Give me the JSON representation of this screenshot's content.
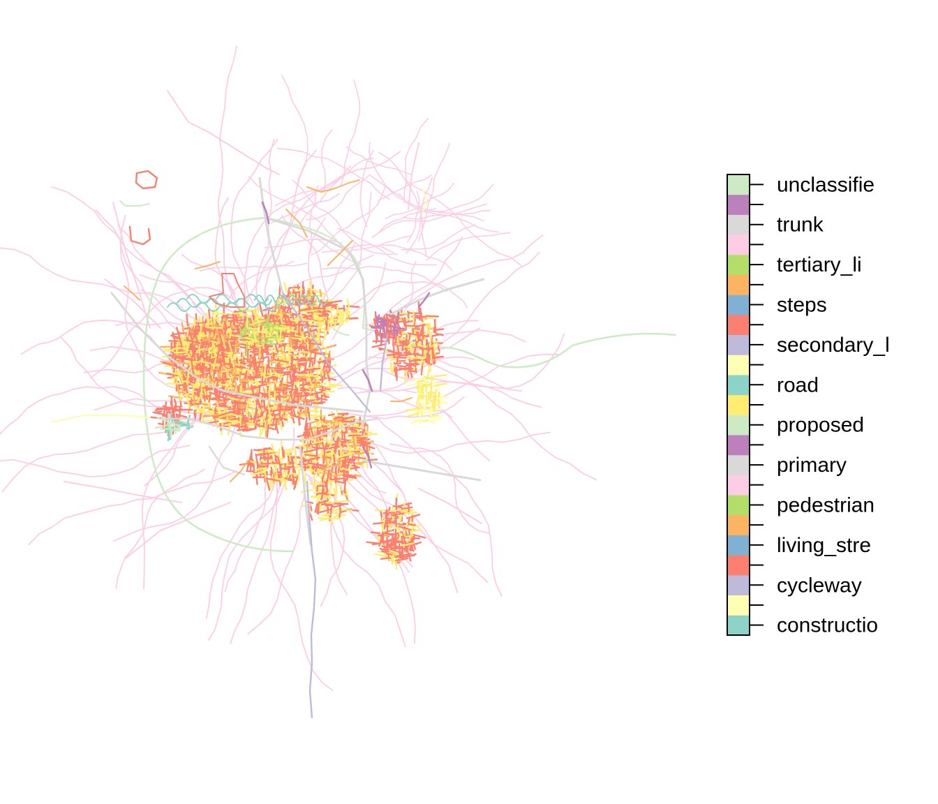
{
  "legend": {
    "categories": [
      {
        "label": "constructio",
        "color": "#8DD3C7"
      },
      {
        "label": "",
        "color": "#FFFFB3"
      },
      {
        "label": "cycleway",
        "color": "#BEBADA"
      },
      {
        "label": "",
        "color": "#FB8072"
      },
      {
        "label": "living_stre",
        "color": "#80B1D3"
      },
      {
        "label": "",
        "color": "#FDB462"
      },
      {
        "label": "pedestrian",
        "color": "#B3DE69"
      },
      {
        "label": "",
        "color": "#FCCDE5"
      },
      {
        "label": "primary",
        "color": "#D9D9D9"
      },
      {
        "label": "",
        "color": "#BC80BD"
      },
      {
        "label": "proposed",
        "color": "#CCEBC5"
      },
      {
        "label": "",
        "color": "#FFED6F"
      },
      {
        "label": "road",
        "color": "#8DD3C7"
      },
      {
        "label": "",
        "color": "#FFFFB3"
      },
      {
        "label": "secondary_l",
        "color": "#BEBADA"
      },
      {
        "label": "",
        "color": "#FB8072"
      },
      {
        "label": "steps",
        "color": "#80B1D3"
      },
      {
        "label": "",
        "color": "#FDB462"
      },
      {
        "label": "tertiary_li",
        "color": "#B3DE69"
      },
      {
        "label": "",
        "color": "#FCCDE5"
      },
      {
        "label": "trunk",
        "color": "#D9D9D9"
      },
      {
        "label": "",
        "color": "#BC80BD"
      },
      {
        "label": "unclassifie",
        "color": "#CCEBC5"
      }
    ]
  },
  "map": {
    "colors": {
      "minor_roads": "#FCCDE5",
      "residential": "#FB8072",
      "service": "#FFED6F",
      "tertiary": "#FDB462",
      "ring": "#CCEBC5",
      "primary": "#D9D9D9",
      "cycleway": "#BEBADA",
      "track": "#8DD3C7",
      "trunk_link": "#BC80BD",
      "light_yellow": "#FFFFB3",
      "pedestrian": "#B3DE69",
      "living": "#80B1D3"
    }
  }
}
